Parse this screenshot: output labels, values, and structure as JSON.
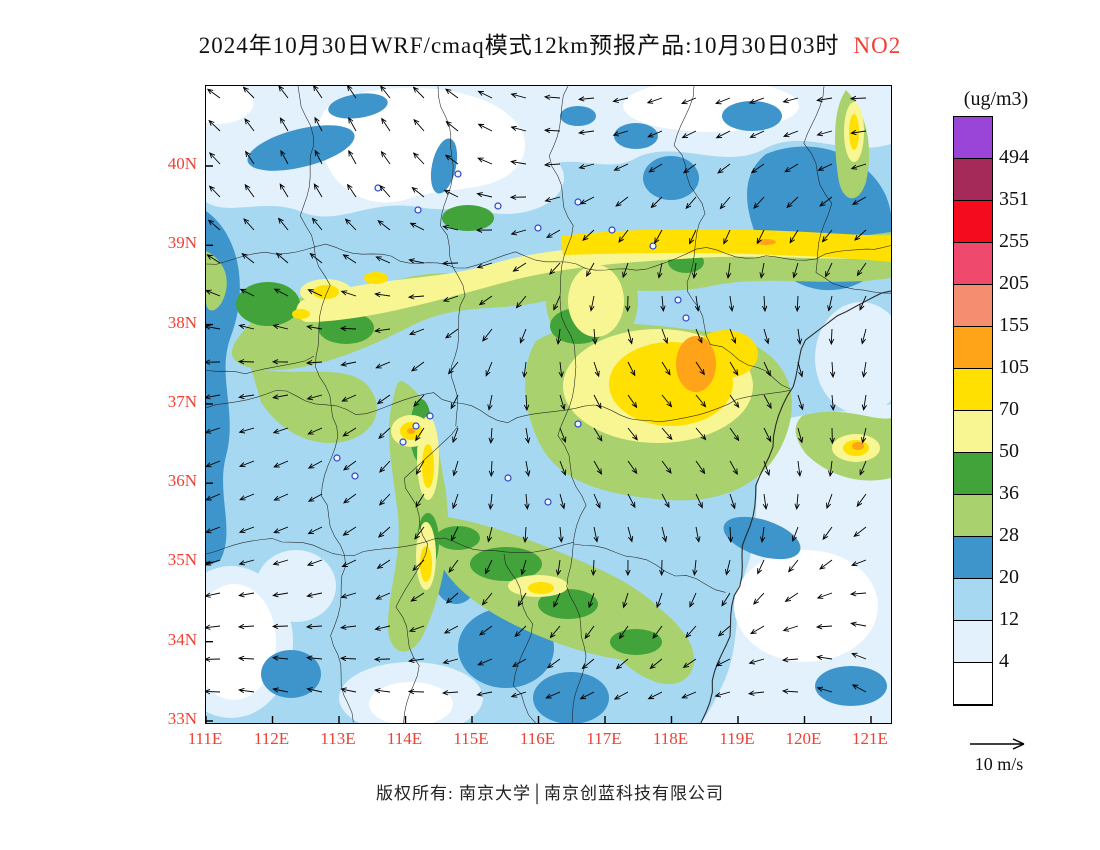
{
  "chart_data": {
    "type": "heatmap",
    "title_black": "2024年10月30日WRF/cmaq模式12km预报产品:10月30日03时",
    "title_species_red": "NO2",
    "units_label": "(ug/m3)",
    "y_axis_ticks": [
      "40N",
      "39N",
      "38N",
      "37N",
      "36N",
      "35N",
      "34N",
      "33N"
    ],
    "x_axis_ticks": [
      "111E",
      "112E",
      "113E",
      "114E",
      "115E",
      "116E",
      "117E",
      "118E",
      "119E",
      "120E",
      "121E"
    ],
    "x_range": [
      111,
      121.3
    ],
    "y_range": [
      33,
      41
    ],
    "grid": false,
    "legend_position": "right",
    "colorbar_levels_top_to_bottom": [
      "494",
      "351",
      "255",
      "205",
      "155",
      "105",
      "70",
      "50",
      "36",
      "28",
      "20",
      "12",
      "4"
    ],
    "colorbar_colors_top_to_bottom": [
      "#9a45d8",
      "#a52a5a",
      "#f40b1e",
      "#ef4a6e",
      "#f58d71",
      "#ffa318",
      "#ffe000",
      "#f8f692",
      "#41a33a",
      "#a9d16d",
      "#3d95cc",
      "#a6d8f2",
      "#e2f1fb",
      "#ffffff"
    ],
    "axis_label_color": "#ef4135",
    "wind_reference_label": "10 m/s",
    "footer": "版权所有: 南京大学│南京创蓝科技有限公司"
  }
}
